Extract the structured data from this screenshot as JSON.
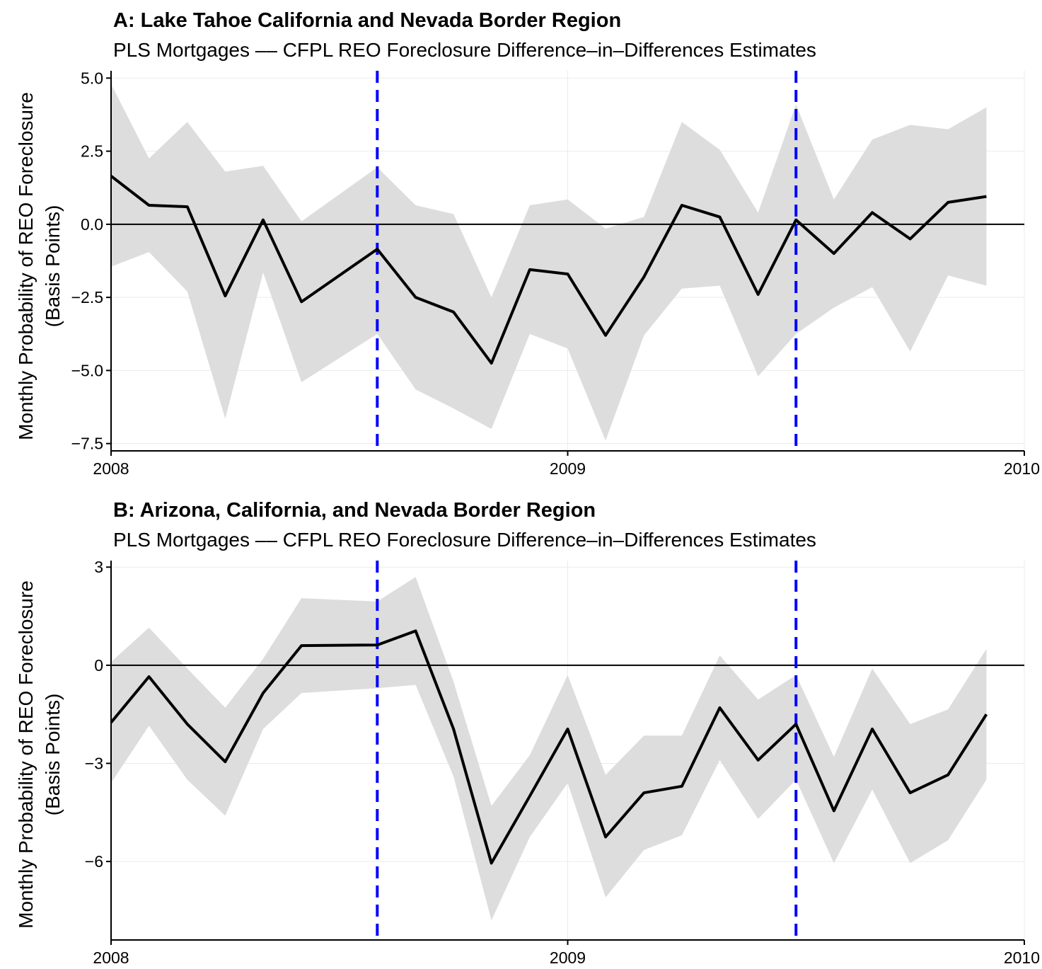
{
  "chart_data": [
    {
      "type": "line",
      "title": "A: Lake Tahoe California and Nevada Border Region",
      "subtitle": "PLS Mortgages –– CFPL REO Foreclosure Difference–in–Differences Estimates",
      "ylabel_line1": "Monthly Probability of REO Foreclosure",
      "ylabel_line2": "(Basis Points)",
      "xlabel": "",
      "xlim": [
        2008,
        2010
      ],
      "ylim": [
        -7.75,
        5.25
      ],
      "x_ticks": [
        {
          "value": 2008,
          "label": "2008"
        },
        {
          "value": 2009,
          "label": "2009"
        },
        {
          "value": 2010,
          "label": "2010"
        }
      ],
      "y_ticks": [
        {
          "value": 5.0,
          "label": "5.0"
        },
        {
          "value": 2.5,
          "label": "2.5"
        },
        {
          "value": 0.0,
          "label": "0.0"
        },
        {
          "value": -2.5,
          "label": "−2.5"
        },
        {
          "value": -5.0,
          "label": "−5.0"
        },
        {
          "value": -7.5,
          "label": "−7.5"
        }
      ],
      "grid": true,
      "zero_line": 0,
      "event_lines": [
        2008.583,
        2009.5
      ],
      "x": [
        2008.0,
        2008.083,
        2008.167,
        2008.25,
        2008.333,
        2008.417,
        2008.583,
        2008.667,
        2008.75,
        2008.833,
        2008.917,
        2009.0,
        2009.083,
        2009.167,
        2009.25,
        2009.333,
        2009.417,
        2009.5,
        2009.583,
        2009.667,
        2009.75,
        2009.833,
        2009.917
      ],
      "series": [
        {
          "values": [
            1.65,
            0.65,
            0.6,
            -2.45,
            0.15,
            -2.65,
            -0.85,
            -2.5,
            -3.0,
            -4.75,
            -1.55,
            -1.7,
            -3.8,
            -1.8,
            0.65,
            0.25,
            -2.4,
            0.15,
            -1.0,
            0.4,
            -0.5,
            0.75,
            0.95
          ]
        }
      ],
      "band_upper": [
        4.8,
        2.25,
        3.5,
        1.8,
        2.0,
        0.1,
        1.95,
        0.65,
        0.35,
        -2.5,
        0.65,
        0.85,
        -0.15,
        0.25,
        3.5,
        2.55,
        0.4,
        4.1,
        0.85,
        2.9,
        3.4,
        3.25,
        4.0
      ],
      "band_lower": [
        -1.45,
        -0.95,
        -2.3,
        -6.65,
        -1.65,
        -5.4,
        -3.75,
        -5.65,
        -6.3,
        -7.0,
        -3.75,
        -4.25,
        -7.4,
        -3.8,
        -2.2,
        -2.1,
        -5.2,
        -3.75,
        -2.85,
        -2.15,
        -4.35,
        -1.75,
        -2.1
      ],
      "colors": {
        "line": "#000000",
        "band": "#dddddd",
        "event": "#0000ff",
        "grid": "#ebebeb",
        "axis": "#000000"
      }
    },
    {
      "type": "line",
      "title": "B: Arizona, California, and Nevada Border Region",
      "subtitle": "PLS Mortgages –– CFPL REO Foreclosure Difference–in–Differences Estimates",
      "ylabel_line1": "Monthly Probability of REO Foreclosure",
      "ylabel_line2": "(Basis Points)",
      "xlabel": "",
      "xlim": [
        2008,
        2010
      ],
      "ylim": [
        -8.4,
        3.2
      ],
      "x_ticks": [
        {
          "value": 2008,
          "label": "2008"
        },
        {
          "value": 2009,
          "label": "2009"
        },
        {
          "value": 2010,
          "label": "2010"
        }
      ],
      "y_ticks": [
        {
          "value": 3,
          "label": "3"
        },
        {
          "value": 0,
          "label": "0"
        },
        {
          "value": -3,
          "label": "−3"
        },
        {
          "value": -6,
          "label": "−6"
        }
      ],
      "grid": true,
      "zero_line": 0,
      "event_lines": [
        2008.583,
        2009.5
      ],
      "x": [
        2008.0,
        2008.083,
        2008.167,
        2008.25,
        2008.333,
        2008.417,
        2008.583,
        2008.667,
        2008.75,
        2008.833,
        2008.917,
        2009.0,
        2009.083,
        2009.167,
        2009.25,
        2009.333,
        2009.417,
        2009.5,
        2009.583,
        2009.667,
        2009.75,
        2009.833,
        2009.917
      ],
      "series": [
        {
          "values": [
            -1.75,
            -0.35,
            -1.8,
            -2.95,
            -0.85,
            0.6,
            0.62,
            1.05,
            -1.95,
            -6.05,
            -4.0,
            -1.95,
            -5.25,
            -3.9,
            -3.7,
            -1.3,
            -2.9,
            -1.8,
            -4.45,
            -1.95,
            -3.9,
            -3.35,
            -1.5
          ]
        }
      ],
      "band_upper": [
        0.1,
        1.15,
        -0.1,
        -1.3,
        0.2,
        2.05,
        1.95,
        2.7,
        -0.5,
        -4.3,
        -2.75,
        -0.3,
        -3.35,
        -2.15,
        -2.15,
        0.3,
        -1.05,
        -0.3,
        -2.8,
        -0.1,
        -1.8,
        -1.35,
        0.5
      ],
      "band_lower": [
        -3.6,
        -1.85,
        -3.5,
        -4.6,
        -1.95,
        -0.85,
        -0.7,
        -0.6,
        -3.4,
        -7.8,
        -5.25,
        -3.6,
        -7.1,
        -5.65,
        -5.2,
        -2.9,
        -4.7,
        -3.5,
        -6.05,
        -3.8,
        -6.05,
        -5.35,
        -3.5
      ],
      "colors": {
        "line": "#000000",
        "band": "#dddddd",
        "event": "#0000ff",
        "grid": "#ebebeb",
        "axis": "#000000"
      }
    }
  ]
}
